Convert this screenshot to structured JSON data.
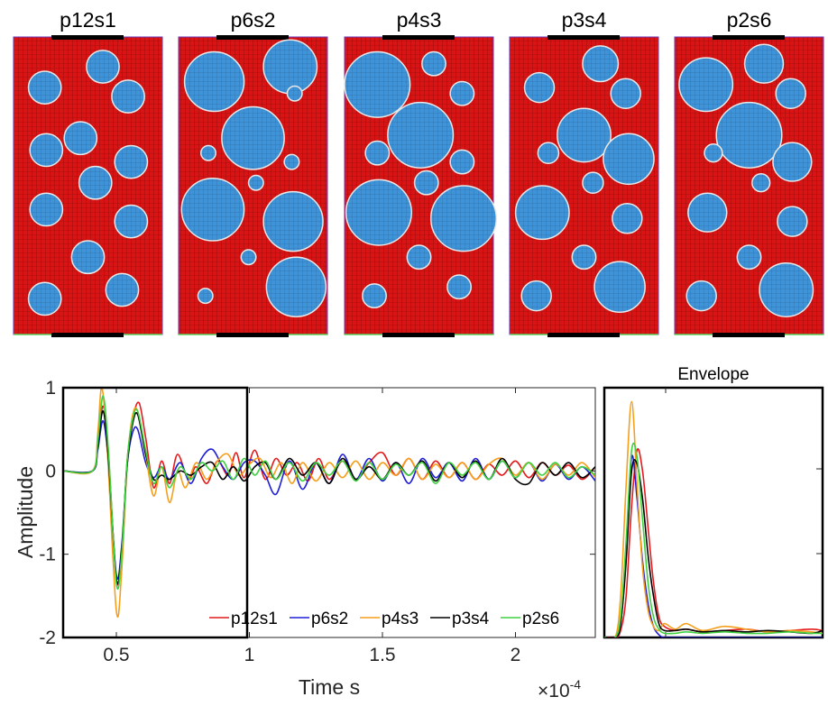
{
  "panels": [
    {
      "title": "p12s1",
      "circles": [
        [
          0.21,
          0.17,
          0.11
        ],
        [
          0.6,
          0.1,
          0.11
        ],
        [
          0.77,
          0.2,
          0.11
        ],
        [
          0.45,
          0.34,
          0.11
        ],
        [
          0.22,
          0.38,
          0.11
        ],
        [
          0.79,
          0.42,
          0.11
        ],
        [
          0.55,
          0.49,
          0.11
        ],
        [
          0.22,
          0.58,
          0.11
        ],
        [
          0.79,
          0.62,
          0.11
        ],
        [
          0.5,
          0.74,
          0.11
        ],
        [
          0.21,
          0.88,
          0.11
        ],
        [
          0.73,
          0.85,
          0.11
        ]
      ]
    },
    {
      "title": "p6s2",
      "circles": [
        [
          0.24,
          0.15,
          0.2
        ],
        [
          0.75,
          0.1,
          0.18
        ],
        [
          0.78,
          0.19,
          0.05
        ],
        [
          0.5,
          0.34,
          0.21
        ],
        [
          0.2,
          0.39,
          0.05
        ],
        [
          0.76,
          0.42,
          0.05
        ],
        [
          0.52,
          0.49,
          0.05
        ],
        [
          0.23,
          0.58,
          0.21
        ],
        [
          0.77,
          0.62,
          0.2
        ],
        [
          0.47,
          0.74,
          0.05
        ],
        [
          0.18,
          0.87,
          0.05
        ],
        [
          0.79,
          0.84,
          0.2
        ]
      ]
    },
    {
      "title": "p4s3",
      "circles": [
        [
          0.22,
          0.16,
          0.22
        ],
        [
          0.6,
          0.09,
          0.08
        ],
        [
          0.79,
          0.19,
          0.08
        ],
        [
          0.51,
          0.33,
          0.22
        ],
        [
          0.22,
          0.39,
          0.08
        ],
        [
          0.79,
          0.42,
          0.08
        ],
        [
          0.55,
          0.49,
          0.08
        ],
        [
          0.23,
          0.59,
          0.22
        ],
        [
          0.8,
          0.61,
          0.22
        ],
        [
          0.5,
          0.74,
          0.08
        ],
        [
          0.2,
          0.87,
          0.08
        ],
        [
          0.77,
          0.84,
          0.08
        ]
      ]
    },
    {
      "title": "p3s4",
      "circles": [
        [
          0.2,
          0.17,
          0.1
        ],
        [
          0.61,
          0.09,
          0.12
        ],
        [
          0.78,
          0.19,
          0.1
        ],
        [
          0.5,
          0.33,
          0.18
        ],
        [
          0.26,
          0.39,
          0.07
        ],
        [
          0.8,
          0.41,
          0.17
        ],
        [
          0.56,
          0.49,
          0.07
        ],
        [
          0.22,
          0.59,
          0.18
        ],
        [
          0.79,
          0.61,
          0.1
        ],
        [
          0.5,
          0.74,
          0.08
        ],
        [
          0.18,
          0.87,
          0.1
        ],
        [
          0.74,
          0.84,
          0.17
        ]
      ]
    },
    {
      "title": "p2s6",
      "circles": [
        [
          0.21,
          0.16,
          0.18
        ],
        [
          0.6,
          0.09,
          0.13
        ],
        [
          0.78,
          0.19,
          0.1
        ],
        [
          0.5,
          0.33,
          0.22
        ],
        [
          0.26,
          0.39,
          0.06
        ],
        [
          0.79,
          0.42,
          0.13
        ],
        [
          0.58,
          0.49,
          0.06
        ],
        [
          0.22,
          0.59,
          0.13
        ],
        [
          0.79,
          0.62,
          0.1
        ],
        [
          0.5,
          0.74,
          0.08
        ],
        [
          0.18,
          0.87,
          0.1
        ],
        [
          0.75,
          0.85,
          0.18
        ]
      ]
    }
  ],
  "colors": {
    "matrix": "#d81414",
    "aggregate": "#3f93d9",
    "mesh": "#3b0000",
    "edge": "#ffffff"
  },
  "chart_data": [
    {
      "type": "line",
      "xlabel": "Time s",
      "ylabel": "Amplitude",
      "exponent": "×10",
      "exponent_power": "-4",
      "xlim": [
        0.3,
        2.3
      ],
      "ylim": [
        -2,
        1
      ],
      "xticks": [
        "0.5",
        "1",
        "1.5",
        "2"
      ],
      "yticks": [
        "-2",
        "-1",
        "0",
        "1"
      ],
      "legend_position": "bottom-right",
      "series": [
        {
          "name": "p12s1",
          "color": "#e41a1c",
          "x": [
            0.3,
            0.41,
            0.43,
            0.45,
            0.47,
            0.5,
            0.52,
            0.54,
            0.56,
            0.585,
            0.61,
            0.64,
            0.67,
            0.7,
            0.73,
            0.77,
            0.8,
            0.84,
            0.88,
            0.92,
            0.95,
            0.98,
            1.02,
            1.06,
            1.1,
            1.14,
            1.18,
            1.22,
            1.26,
            1.3,
            1.35,
            1.4,
            1.45,
            1.5,
            1.55,
            1.6,
            1.65,
            1.7,
            1.75,
            1.8,
            1.85,
            1.9,
            1.95,
            2.0,
            2.05,
            2.1,
            2.15,
            2.2,
            2.25,
            2.3
          ],
          "y": [
            0,
            0,
            0.3,
            0.78,
            0.2,
            -1.3,
            -1.0,
            0.1,
            0.6,
            0.82,
            0.4,
            -0.2,
            0.12,
            -0.15,
            0.2,
            -0.1,
            0.05,
            -0.15,
            0.12,
            -0.05,
            0.22,
            -0.08,
            0.25,
            -0.1,
            0.15,
            -0.05,
            0.1,
            -0.12,
            0.15,
            -0.1,
            0.12,
            -0.1,
            0.1,
            0.22,
            -0.05,
            0.15,
            -0.1,
            0.12,
            -0.08,
            0.1,
            -0.1,
            0.08,
            -0.05,
            0.12,
            -0.08,
            0.1,
            -0.05,
            0.07,
            -0.1,
            0.05
          ]
        },
        {
          "name": "p6s2",
          "color": "#1f1fd6",
          "x": [
            0.3,
            0.41,
            0.43,
            0.45,
            0.47,
            0.5,
            0.52,
            0.54,
            0.56,
            0.58,
            0.61,
            0.64,
            0.67,
            0.7,
            0.74,
            0.78,
            0.82,
            0.86,
            0.9,
            0.94,
            0.98,
            1.02,
            1.06,
            1.1,
            1.15,
            1.2,
            1.25,
            1.3,
            1.35,
            1.4,
            1.45,
            1.5,
            1.55,
            1.6,
            1.65,
            1.7,
            1.75,
            1.8,
            1.85,
            1.9,
            1.95,
            2.0,
            2.05,
            2.1,
            2.15,
            2.2,
            2.25,
            2.3
          ],
          "y": [
            0,
            0,
            0.25,
            0.6,
            0.1,
            -1.25,
            -0.9,
            0.05,
            0.45,
            0.5,
            0.1,
            -0.08,
            0.05,
            -0.1,
            0.1,
            -0.15,
            0.15,
            0.26,
            0.05,
            -0.1,
            0.1,
            0.12,
            -0.05,
            -0.28,
            0.12,
            -0.22,
            0.1,
            -0.15,
            0.2,
            -0.1,
            0.15,
            -0.12,
            0.1,
            -0.15,
            0.15,
            -0.08,
            0.1,
            -0.12,
            0.15,
            -0.1,
            0.12,
            -0.08,
            0.1,
            -0.12,
            0.08,
            -0.1,
            0.05,
            -0.12
          ]
        },
        {
          "name": "p4s3",
          "color": "#f59f1c",
          "x": [
            0.3,
            0.41,
            0.43,
            0.445,
            0.465,
            0.5,
            0.52,
            0.54,
            0.56,
            0.58,
            0.61,
            0.64,
            0.67,
            0.7,
            0.73,
            0.76,
            0.8,
            0.84,
            0.88,
            0.92,
            0.96,
            1.0,
            1.04,
            1.08,
            1.12,
            1.16,
            1.2,
            1.25,
            1.3,
            1.35,
            1.4,
            1.45,
            1.5,
            1.55,
            1.6,
            1.65,
            1.7,
            1.75,
            1.8,
            1.85,
            1.9,
            1.95,
            2.0,
            2.05,
            2.1,
            2.15,
            2.2,
            2.25,
            2.3
          ],
          "y": [
            0,
            0,
            0.45,
            1.0,
            0.3,
            -1.68,
            -1.2,
            0.05,
            0.65,
            0.72,
            0.2,
            -0.3,
            0.05,
            -0.38,
            0.0,
            -0.2,
            0.1,
            -0.1,
            0.12,
            0.2,
            -0.05,
            0.08,
            0.15,
            -0.08,
            0.1,
            -0.15,
            0.1,
            -0.12,
            0.1,
            -0.08,
            0.12,
            -0.1,
            0.1,
            -0.05,
            0.15,
            -0.1,
            0.08,
            -0.08,
            0.1,
            -0.1,
            0.08,
            0.15,
            -0.05,
            0.1,
            -0.1,
            0.08,
            -0.05,
            0.1,
            -0.08
          ]
        },
        {
          "name": "p3s4",
          "color": "#000000",
          "x": [
            0.3,
            0.41,
            0.43,
            0.45,
            0.47,
            0.5,
            0.52,
            0.54,
            0.56,
            0.58,
            0.61,
            0.64,
            0.67,
            0.7,
            0.74,
            0.78,
            0.82,
            0.86,
            0.9,
            0.94,
            0.98,
            1.02,
            1.06,
            1.1,
            1.15,
            1.2,
            1.25,
            1.3,
            1.35,
            1.4,
            1.45,
            1.5,
            1.55,
            1.6,
            1.65,
            1.7,
            1.75,
            1.8,
            1.85,
            1.9,
            1.95,
            2.0,
            2.05,
            2.1,
            2.15,
            2.2,
            2.25,
            2.3
          ],
          "y": [
            0,
            0,
            0.3,
            0.72,
            0.15,
            -1.3,
            -0.95,
            0.05,
            0.55,
            0.68,
            0.2,
            -0.1,
            -0.05,
            -0.1,
            0.0,
            -0.05,
            0.05,
            0.1,
            -0.1,
            0.05,
            -0.12,
            0.05,
            0.1,
            -0.1,
            0.15,
            -0.05,
            0.1,
            -0.15,
            0.15,
            -0.1,
            0.05,
            -0.1,
            0.1,
            -0.05,
            0.12,
            -0.12,
            0.1,
            -0.08,
            0.12,
            -0.1,
            0.15,
            -0.1,
            -0.15,
            0.1,
            -0.05,
            0.1,
            -0.08,
            0.05
          ]
        },
        {
          "name": "p2s6",
          "color": "#3fd13f",
          "x": [
            0.3,
            0.41,
            0.43,
            0.45,
            0.47,
            0.5,
            0.52,
            0.54,
            0.56,
            0.58,
            0.61,
            0.64,
            0.67,
            0.7,
            0.74,
            0.78,
            0.82,
            0.86,
            0.9,
            0.94,
            0.98,
            1.02,
            1.06,
            1.1,
            1.15,
            1.2,
            1.25,
            1.3,
            1.35,
            1.4,
            1.45,
            1.5,
            1.55,
            1.6,
            1.65,
            1.7,
            1.75,
            1.8,
            1.85,
            1.9,
            1.95,
            2.0,
            2.05,
            2.1,
            2.15,
            2.2,
            2.25,
            2.3
          ],
          "y": [
            0,
            0,
            0.35,
            0.9,
            0.25,
            -1.35,
            -1.0,
            0.1,
            0.6,
            0.72,
            0.25,
            -0.15,
            0.05,
            -0.2,
            0.05,
            -0.1,
            0.1,
            0.0,
            0.12,
            -0.1,
            0.15,
            -0.05,
            0.12,
            -0.1,
            0.1,
            -0.12,
            0.1,
            -0.05,
            0.12,
            -0.12,
            0.1,
            -0.1,
            0.08,
            -0.05,
            0.1,
            -0.15,
            0.1,
            -0.05,
            0.1,
            -0.1,
            0.12,
            -0.08,
            0.1,
            -0.05,
            0.1,
            -0.08,
            0.05,
            -0.05
          ]
        }
      ]
    },
    {
      "type": "line",
      "title": "Envelope",
      "xlim": [
        0.3,
        2.3
      ],
      "ylim": [
        0,
        1.8
      ],
      "series": [
        {
          "name": "p12s1",
          "color": "#e41a1c",
          "x": [
            0.3,
            0.4,
            0.45,
            0.5,
            0.55,
            0.6,
            0.65,
            0.7,
            0.75,
            0.8,
            0.85,
            0.95,
            1.05,
            1.2,
            1.4,
            1.6,
            1.8,
            2.0,
            2.2,
            2.3
          ],
          "y": [
            0,
            0,
            0.05,
            0.3,
            0.95,
            1.35,
            1.2,
            0.8,
            0.4,
            0.15,
            0.08,
            0.05,
            0.06,
            0.04,
            0.05,
            0.06,
            0.04,
            0.05,
            0.06,
            0.05
          ]
        },
        {
          "name": "p6s2",
          "color": "#1f1fd6",
          "x": [
            0.3,
            0.4,
            0.45,
            0.5,
            0.55,
            0.6,
            0.65,
            0.7,
            0.75,
            0.8,
            0.85,
            0.95,
            1.05,
            1.2,
            1.4,
            1.6,
            1.8,
            2.0,
            2.2,
            2.3
          ],
          "y": [
            0,
            0,
            0.1,
            0.6,
            1.3,
            1.0,
            0.55,
            0.25,
            0.08,
            0.02,
            0.0,
            0.0,
            0.0,
            0.0,
            0.0,
            0.0,
            0.0,
            0.0,
            0.0,
            0.0
          ]
        },
        {
          "name": "p4s3",
          "color": "#f59f1c",
          "x": [
            0.3,
            0.4,
            0.45,
            0.5,
            0.55,
            0.6,
            0.65,
            0.7,
            0.75,
            0.8,
            0.85,
            0.95,
            1.05,
            1.2,
            1.4,
            1.6,
            1.8,
            2.0,
            2.2,
            2.3
          ],
          "y": [
            0,
            0,
            0.3,
            1.1,
            1.7,
            1.1,
            0.5,
            0.2,
            0.08,
            0.05,
            0.1,
            0.06,
            0.1,
            0.05,
            0.08,
            0.06,
            0.04,
            0.05,
            0.04,
            0.03
          ]
        },
        {
          "name": "p3s4",
          "color": "#000000",
          "x": [
            0.3,
            0.4,
            0.45,
            0.5,
            0.55,
            0.6,
            0.65,
            0.7,
            0.75,
            0.8,
            0.85,
            0.95,
            1.05,
            1.2,
            1.4,
            1.6,
            1.8,
            2.0,
            2.2,
            2.3
          ],
          "y": [
            0,
            0,
            0.1,
            0.55,
            1.2,
            1.25,
            1.0,
            0.6,
            0.3,
            0.1,
            0.05,
            0.05,
            0.06,
            0.04,
            0.05,
            0.04,
            0.05,
            0.04,
            0.03,
            0.05
          ]
        },
        {
          "name": "p2s6",
          "color": "#3fd13f",
          "x": [
            0.3,
            0.4,
            0.45,
            0.5,
            0.55,
            0.6,
            0.65,
            0.7,
            0.75,
            0.8,
            0.85,
            0.95,
            1.05,
            1.2,
            1.4,
            1.6,
            1.8,
            2.0,
            2.2,
            2.3
          ],
          "y": [
            0,
            0,
            0.15,
            0.7,
            1.35,
            1.3,
            0.85,
            0.4,
            0.15,
            0.06,
            0.03,
            0.03,
            0.04,
            0.03,
            0.04,
            0.03,
            0.03,
            0.04,
            0.03,
            0.03
          ]
        }
      ]
    }
  ]
}
